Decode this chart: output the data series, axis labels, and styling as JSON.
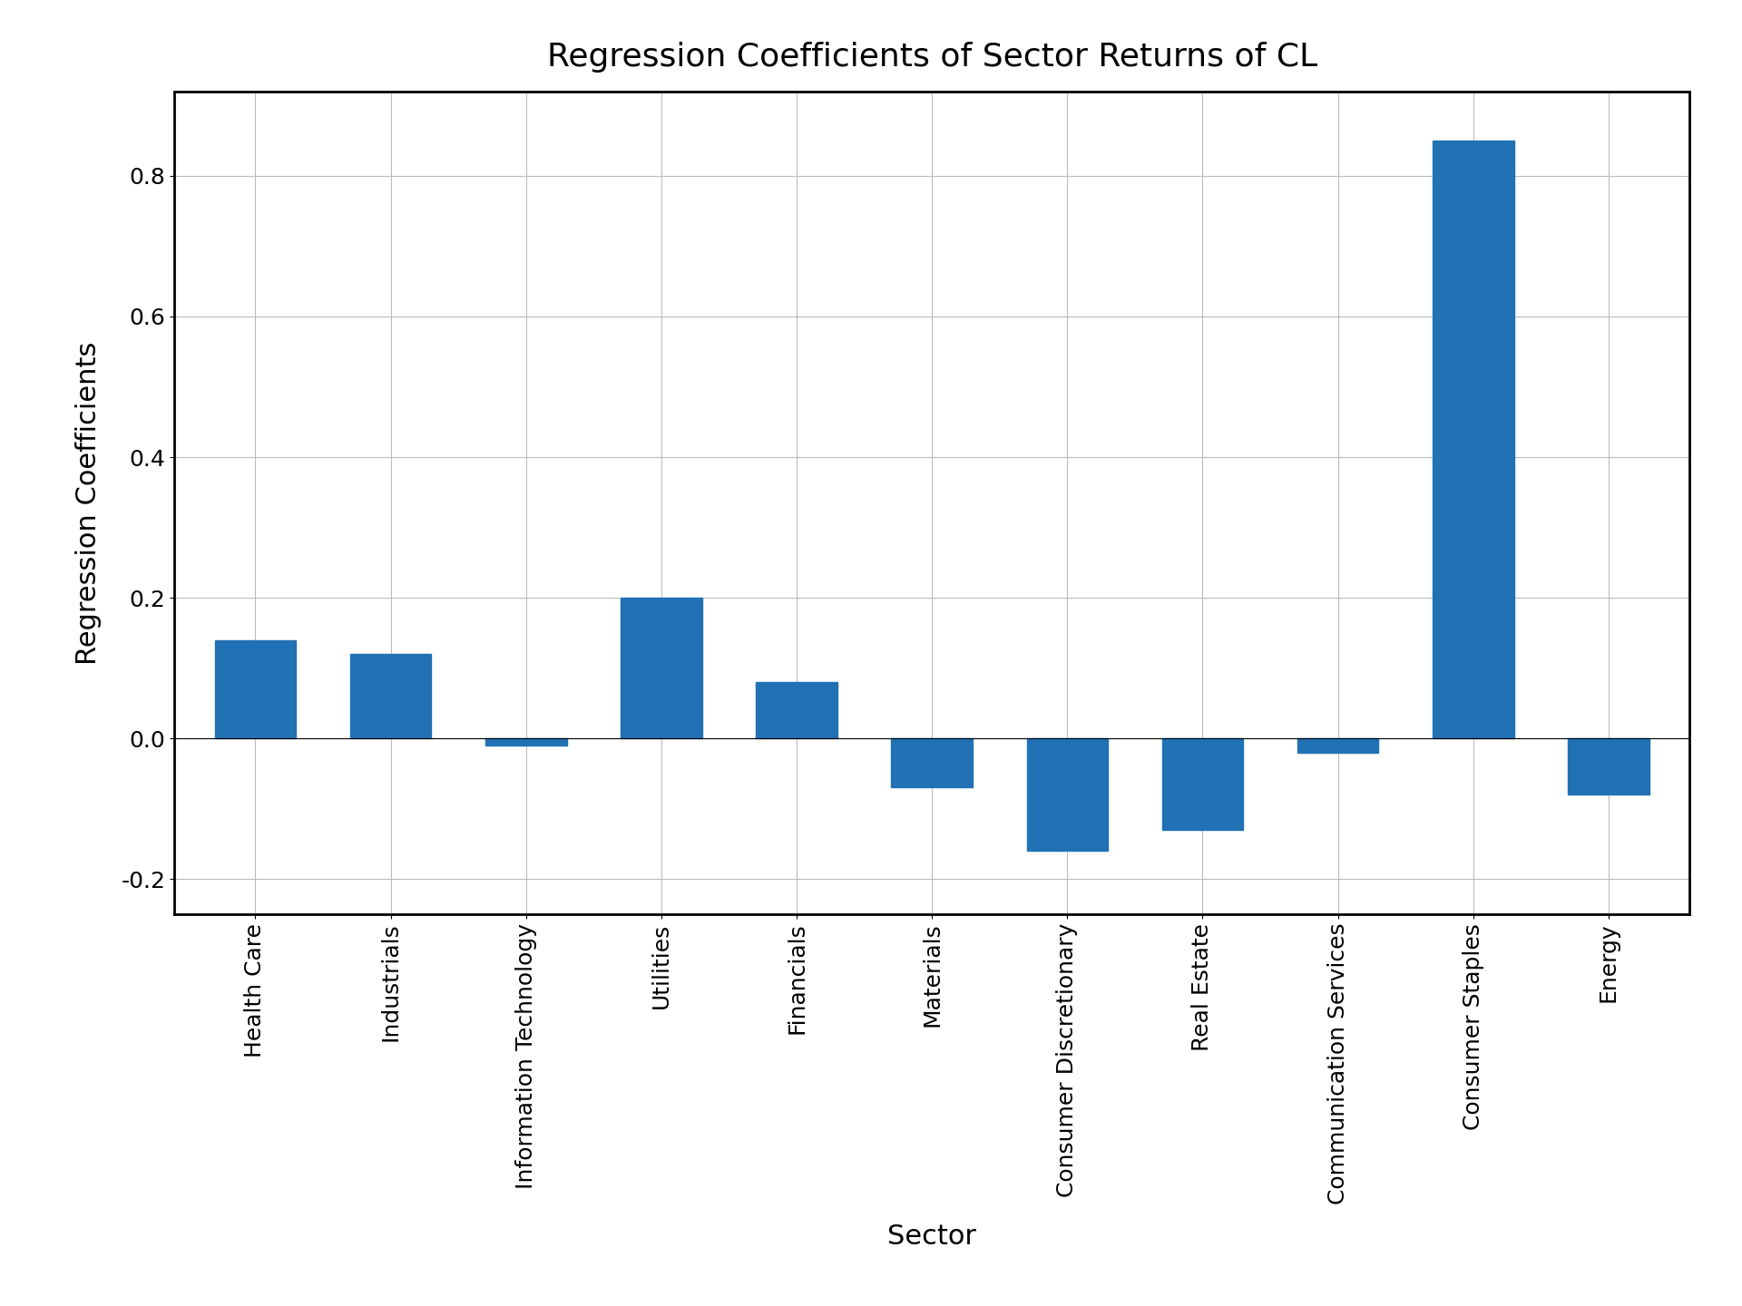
{
  "title": "Regression Coefficients of Sector Returns of CL",
  "xlabel": "Sector",
  "ylabel": "Regression Coefficients",
  "categories": [
    "Health Care",
    "Industrials",
    "Information Technology",
    "Utilities",
    "Financials",
    "Materials",
    "Consumer Discretionary",
    "Real Estate",
    "Communication Services",
    "Consumer Staples",
    "Energy"
  ],
  "values": [
    0.14,
    0.12,
    -0.01,
    0.2,
    0.08,
    -0.07,
    -0.16,
    -0.13,
    -0.02,
    0.85,
    -0.08
  ],
  "bar_color": "#2171b5",
  "ylim": [
    -0.25,
    0.92
  ],
  "yticks": [
    -0.2,
    0.0,
    0.2,
    0.4,
    0.6,
    0.8
  ],
  "title_fontsize": 26,
  "label_fontsize": 22,
  "tick_fontsize": 18,
  "figsize": [
    19.2,
    14.4
  ],
  "dpi": 100,
  "background_color": "#ffffff",
  "grid_color": "#bbbbbb",
  "bar_width": 0.6,
  "spine_linewidth": 2.0
}
